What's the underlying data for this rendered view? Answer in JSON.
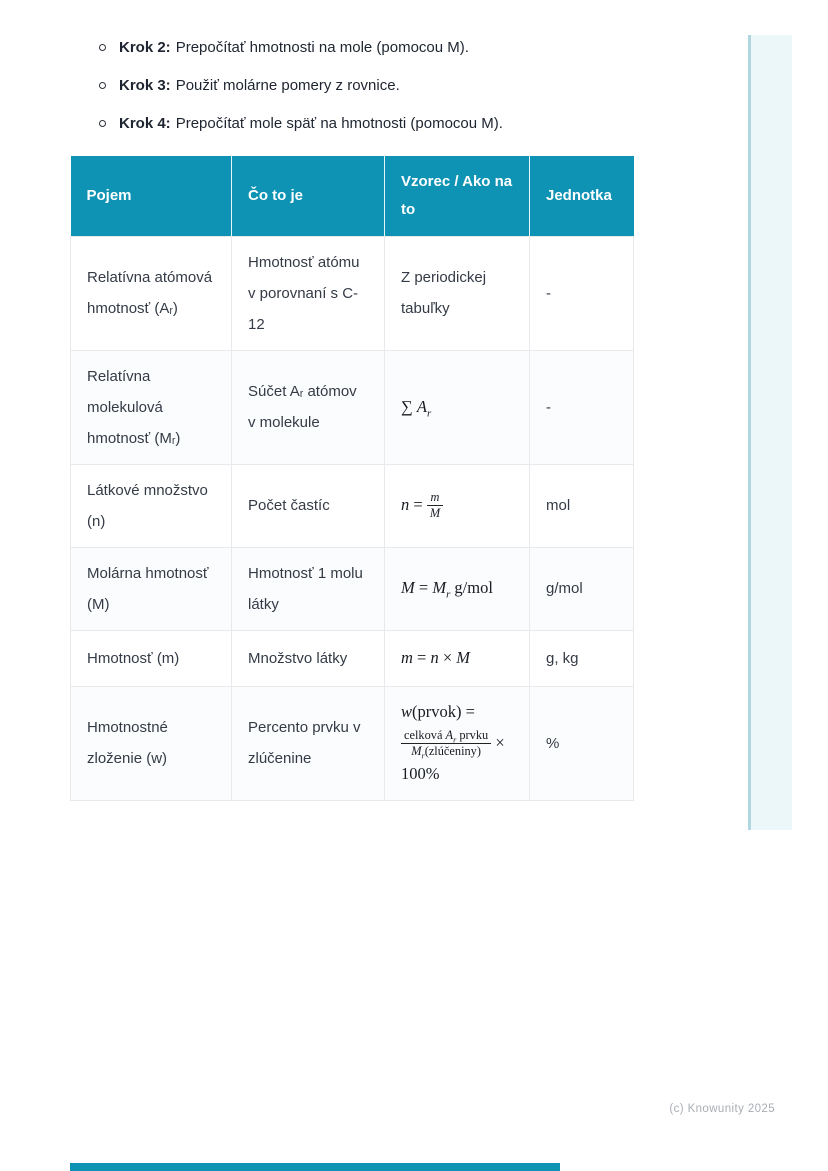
{
  "colors": {
    "accent_teal": "#0f93b4",
    "rail_bg": "#ecf7fa",
    "rail_edge": "#b0d7df",
    "cell_border": "#e7e9ed"
  },
  "steps": {
    "items": [
      {
        "label": "Krok 2:",
        "text": "Prepočítať hmotnosti na mole (pomocou M)."
      },
      {
        "label": "Krok 3:",
        "text": "Použiť molárne pomery z rovnice."
      },
      {
        "label": "Krok 4:",
        "text": "Prepočítať mole späť na hmotnosti (pomocou M)."
      }
    ]
  },
  "table": {
    "headers": [
      "Pojem",
      "Čo to je",
      "Vzorec / Ako na to",
      "Jednotka"
    ],
    "rows": [
      {
        "pojem": "Relatívna atómová hmotnosť (Aᵣ)",
        "co_to_je": "Hmotnosť atómu v porovnaní s C-12",
        "vzorec_text": "Z periodickej tabuľky",
        "jednotka": "-"
      },
      {
        "pojem": "Relatívna molekulová hmotnosť (Mᵣ)",
        "co_to_je": "Súčet Aᵣ atómov v molekule",
        "vzorec_math": [
          {
            "t": "∑ ",
            "s": "u"
          },
          {
            "t": "A",
            "s": "i"
          },
          {
            "t": "r",
            "s": "sub"
          }
        ],
        "jednotka": "-"
      },
      {
        "pojem": "Látkové množstvo (n)",
        "co_to_je": "Počet častíc",
        "vzorec_math": [
          {
            "t": "n",
            "s": "i"
          },
          {
            "t": " = ",
            "s": "u"
          },
          {
            "frac": {
              "num": [
                {
                  "t": "m",
                  "s": "i"
                }
              ],
              "den": [
                {
                  "t": "M",
                  "s": "i"
                }
              ]
            }
          }
        ],
        "jednotka": "mol"
      },
      {
        "pojem": "Molárna hmotnosť (M)",
        "co_to_je": "Hmotnosť 1 molu látky",
        "vzorec_math": [
          {
            "t": "M",
            "s": "i"
          },
          {
            "t": " = ",
            "s": "u"
          },
          {
            "t": "M",
            "s": "i"
          },
          {
            "t": "r",
            "s": "sub"
          },
          {
            "t": " g/mol",
            "s": "u"
          }
        ],
        "jednotka": "g/mol"
      },
      {
        "pojem": "Hmotnosť (m)",
        "co_to_je": "Množstvo látky",
        "vzorec_math": [
          {
            "t": "m",
            "s": "i"
          },
          {
            "t": " = ",
            "s": "u"
          },
          {
            "t": "n",
            "s": "i"
          },
          {
            "t": " × ",
            "s": "u"
          },
          {
            "t": "M",
            "s": "i"
          }
        ],
        "jednotka": "g, kg"
      },
      {
        "pojem": "Hmotnostné zloženie (w)",
        "co_to_je": "Percento prvku v zlúčenine",
        "vzorec_math": [
          {
            "t": "w",
            "s": "i"
          },
          {
            "t": "(prvok) =",
            "s": "u"
          },
          {
            "br": true
          },
          {
            "frac": {
              "num": [
                {
                  "t": "celková ",
                  "s": "u"
                },
                {
                  "t": "A",
                  "s": "i"
                },
                {
                  "t": "r",
                  "s": "sub"
                },
                {
                  "t": " prvku",
                  "s": "u"
                }
              ],
              "den": [
                {
                  "t": "M",
                  "s": "i"
                },
                {
                  "t": "r",
                  "s": "sub"
                },
                {
                  "t": "(zlúčeniny)",
                  "s": "u"
                }
              ]
            }
          },
          {
            "t": " ×",
            "s": "u"
          },
          {
            "br": true
          },
          {
            "t": "100%",
            "s": "u"
          }
        ],
        "jednotka": "%"
      }
    ]
  },
  "footer": {
    "copyright": "(c) Knowunity 2025"
  }
}
